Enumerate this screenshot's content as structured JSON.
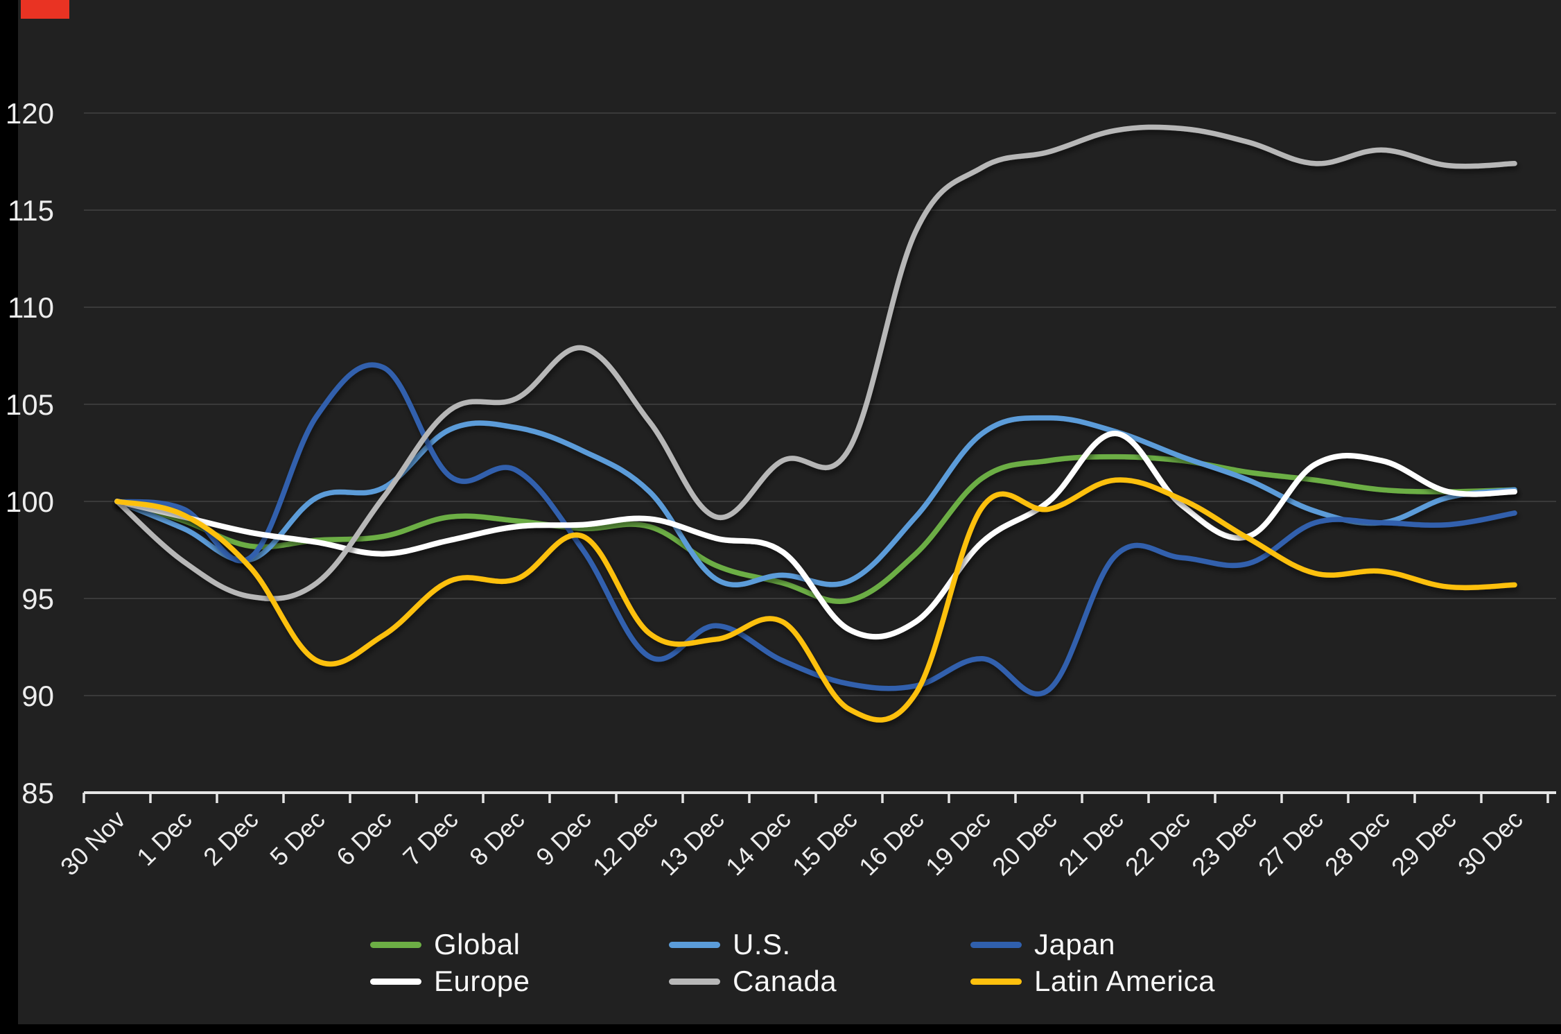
{
  "chart_data": {
    "type": "line",
    "title": "",
    "xlabel": "",
    "ylabel": "",
    "categories": [
      "30 Nov",
      "1 Dec",
      "2 Dec",
      "5 Dec",
      "6 Dec",
      "7 Dec",
      "8 Dec",
      "9 Dec",
      "12 Dec",
      "13 Dec",
      "14 Dec",
      "15 Dec",
      "16 Dec",
      "19 Dec",
      "20 Dec",
      "21 Dec",
      "22 Dec",
      "23 Dec",
      "27 Dec",
      "28 Dec",
      "29 Dec",
      "30 Dec"
    ],
    "y_ticks": [
      85,
      90,
      95,
      100,
      105,
      110,
      115,
      120
    ],
    "ylim": [
      85,
      121.6
    ],
    "grid": "horizontal-only",
    "legend_position": "bottom",
    "series": [
      {
        "name": "Global",
        "color": "#6cae45",
        "values": [
          100,
          99.0,
          97.7,
          98.0,
          98.2,
          99.2,
          99.0,
          98.6,
          98.7,
          96.7,
          95.8,
          94.9,
          97.3,
          101.2,
          102.1,
          102.3,
          102.1,
          101.5,
          101.1,
          100.6,
          100.5,
          100.6
        ]
      },
      {
        "name": "U.S.",
        "color": "#5b9cd9",
        "values": [
          100,
          98.6,
          97.0,
          100.2,
          100.7,
          103.7,
          103.8,
          102.6,
          100.5,
          96.0,
          96.2,
          95.9,
          99.2,
          103.5,
          104.3,
          103.6,
          102.3,
          101.1,
          99.5,
          98.9,
          100.2,
          100.6
        ]
      },
      {
        "name": "Japan",
        "color": "#3060ad",
        "values": [
          100,
          99.6,
          97.1,
          104.4,
          106.9,
          101.3,
          101.6,
          97.5,
          92.0,
          93.6,
          91.8,
          90.6,
          90.5,
          91.9,
          90.3,
          97.2,
          97.1,
          96.8,
          98.9,
          98.9,
          98.8,
          99.4
        ]
      },
      {
        "name": "Europe",
        "color": "#ffffff",
        "values": [
          100,
          99.2,
          98.4,
          97.9,
          97.3,
          98.0,
          98.7,
          98.8,
          99.1,
          98.1,
          97.4,
          93.4,
          93.8,
          97.9,
          100.0,
          103.5,
          99.8,
          98.2,
          101.9,
          102.1,
          100.5,
          100.5
        ]
      },
      {
        "name": "Canada",
        "color": "#b7b7b7",
        "values": [
          100,
          96.9,
          95.1,
          95.8,
          100.2,
          104.7,
          105.3,
          107.9,
          104.1,
          99.2,
          102.1,
          102.7,
          113.9,
          117.2,
          118.0,
          119.1,
          119.2,
          118.5,
          117.4,
          118.1,
          117.3,
          117.4
        ]
      },
      {
        "name": "Latin America",
        "color": "#fdc00e",
        "values": [
          100,
          99.3,
          96.6,
          91.8,
          93.1,
          95.9,
          96.0,
          98.2,
          93.2,
          92.9,
          93.8,
          89.3,
          90.1,
          99.7,
          99.6,
          101.1,
          100.1,
          98.1,
          96.3,
          96.4,
          95.6,
          95.7
        ]
      }
    ]
  },
  "decorations": {
    "record_indicator_color": "#e93323"
  },
  "colors": {
    "background": "#212121",
    "gridline": "#3a3a3a",
    "axis_line": "#e6e6e6",
    "tick_label": "#ededed",
    "edge_frame": "#000000"
  }
}
